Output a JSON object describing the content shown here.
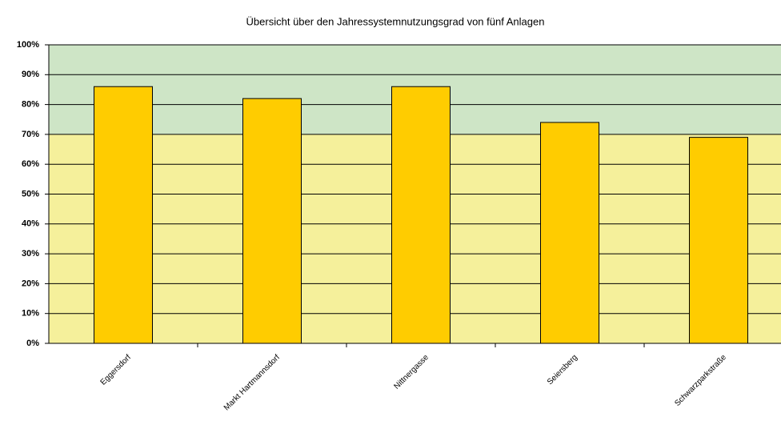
{
  "chart_data": {
    "type": "bar",
    "title": "Übersicht über den Jahressystemnutzungsgrad von fünf Anlagen",
    "categories": [
      "Eggersdorf",
      "Markt Hartmannsdorf",
      "Nittnergasse",
      "Seiersberg",
      "Schwarzparkstraße"
    ],
    "values": [
      86,
      82,
      86,
      74,
      69
    ],
    "color": "#ffcc00",
    "ylim": [
      0,
      100
    ],
    "yticks": [
      {
        "value": 0,
        "label": "0%"
      },
      {
        "value": 10,
        "label": "10%"
      },
      {
        "value": 20,
        "label": "20%"
      },
      {
        "value": 30,
        "label": "30%"
      },
      {
        "value": 40,
        "label": "40%"
      },
      {
        "value": 50,
        "label": "50%"
      },
      {
        "value": 60,
        "label": "60%"
      },
      {
        "value": 70,
        "label": "70%"
      },
      {
        "value": 80,
        "label": "80%"
      },
      {
        "value": 90,
        "label": "90%"
      },
      {
        "value": 100,
        "label": "100%"
      }
    ],
    "grid": true,
    "bands": [
      {
        "from": 0,
        "to": 70,
        "color": "#f5f09b"
      },
      {
        "from": 70,
        "to": 100,
        "color": "#cee5c6"
      }
    ]
  }
}
